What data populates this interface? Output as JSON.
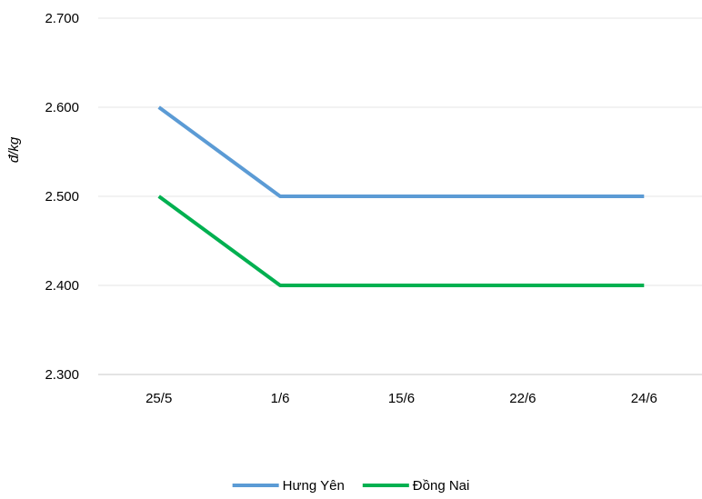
{
  "chart_data": {
    "type": "line",
    "title": "",
    "ylabel": "đ/kg",
    "xlabel": "",
    "categories": [
      "25/5",
      "1/6",
      "15/6",
      "22/6",
      "24/6"
    ],
    "y_ticks": [
      "2.300",
      "2.400",
      "2.500",
      "2.600",
      "2.700"
    ],
    "y_tick_values": [
      2300,
      2400,
      2500,
      2600,
      2700
    ],
    "ylim": [
      2300,
      2700
    ],
    "grid": "horizontal",
    "legend_position": "bottom",
    "series": [
      {
        "name": "Hưng Yên",
        "color": "#5b9bd5",
        "values": [
          2600,
          2500,
          2500,
          2500,
          2500
        ]
      },
      {
        "name": "Đồng Nai",
        "color": "#00b050",
        "values": [
          2500,
          2400,
          2400,
          2400,
          2400
        ]
      }
    ]
  }
}
